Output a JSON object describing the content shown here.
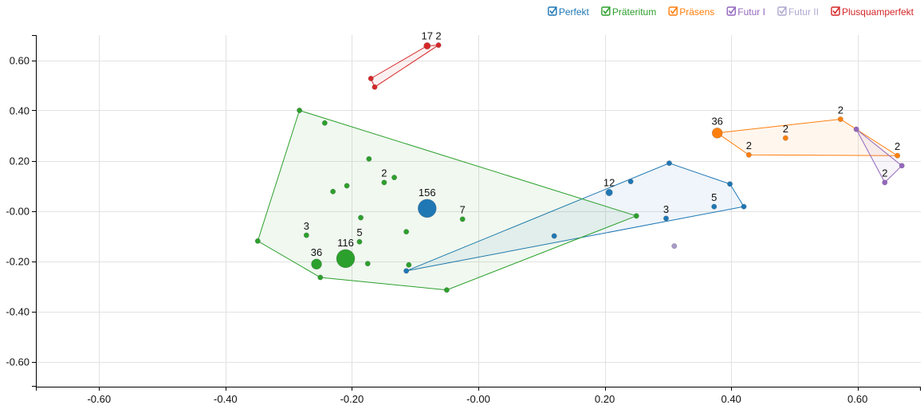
{
  "chart_data": {
    "type": "scatter",
    "title": "",
    "xlabel": "",
    "ylabel": "",
    "xlim": [
      -0.7,
      0.7
    ],
    "ylim": [
      -0.7,
      0.7
    ],
    "x_ticks": [
      "-0.60",
      "-0.40",
      "-0.20",
      "-0.00",
      "0.20",
      "0.40",
      "0.60"
    ],
    "y_ticks": [
      "0.60",
      "0.40",
      "0.20",
      "-0.00",
      "-0.20",
      "-0.40",
      "-0.60"
    ],
    "grid": true,
    "legend_position": "top-right",
    "series": [
      {
        "name": "Perfekt",
        "color": "#1f77b4",
        "enabled": true,
        "hull": [
          [
            -0.114,
            -0.239
          ],
          [
            0.302,
            0.19
          ],
          [
            0.398,
            0.107
          ],
          [
            0.42,
            0.017
          ]
        ],
        "points": [
          {
            "x": -0.081,
            "y": 0.01,
            "count": 156,
            "label": "156"
          },
          {
            "x": 0.207,
            "y": 0.073,
            "count": 12,
            "label": "12"
          },
          {
            "x": 0.297,
            "y": -0.03,
            "count": 3,
            "label": "3"
          },
          {
            "x": 0.373,
            "y": 0.017,
            "count": 5,
            "label": "5"
          },
          {
            "x": 0.241,
            "y": 0.117,
            "count": 1,
            "label": ""
          },
          {
            "x": 0.302,
            "y": 0.19,
            "count": 1,
            "label": ""
          },
          {
            "x": 0.398,
            "y": 0.107,
            "count": 1,
            "label": ""
          },
          {
            "x": 0.42,
            "y": 0.017,
            "count": 1,
            "label": ""
          },
          {
            "x": 0.12,
            "y": -0.1,
            "count": 1,
            "label": ""
          },
          {
            "x": -0.114,
            "y": -0.239,
            "count": 1,
            "label": ""
          }
        ]
      },
      {
        "name": "Präteritum",
        "color": "#2ca02c",
        "enabled": true,
        "hull": [
          [
            -0.283,
            0.4
          ],
          [
            0.25,
            -0.02
          ],
          [
            -0.05,
            -0.315
          ],
          [
            -0.25,
            -0.265
          ],
          [
            -0.349,
            -0.12
          ]
        ],
        "points": [
          {
            "x": -0.21,
            "y": -0.19,
            "count": 116,
            "label": "116"
          },
          {
            "x": -0.256,
            "y": -0.212,
            "count": 36,
            "label": "36"
          },
          {
            "x": -0.025,
            "y": -0.033,
            "count": 7,
            "label": "7"
          },
          {
            "x": -0.188,
            "y": -0.123,
            "count": 5,
            "label": "5"
          },
          {
            "x": -0.272,
            "y": -0.097,
            "count": 3,
            "label": "3"
          },
          {
            "x": -0.149,
            "y": 0.113,
            "count": 2,
            "label": "2"
          },
          {
            "x": -0.283,
            "y": 0.4,
            "count": 1,
            "label": ""
          },
          {
            "x": -0.243,
            "y": 0.35,
            "count": 1,
            "label": ""
          },
          {
            "x": -0.173,
            "y": 0.207,
            "count": 1,
            "label": ""
          },
          {
            "x": -0.133,
            "y": 0.133,
            "count": 1,
            "label": ""
          },
          {
            "x": -0.208,
            "y": 0.1,
            "count": 1,
            "label": ""
          },
          {
            "x": -0.23,
            "y": 0.077,
            "count": 1,
            "label": ""
          },
          {
            "x": -0.186,
            "y": -0.027,
            "count": 1,
            "label": ""
          },
          {
            "x": -0.114,
            "y": -0.083,
            "count": 1,
            "label": ""
          },
          {
            "x": -0.175,
            "y": -0.21,
            "count": 1,
            "label": ""
          },
          {
            "x": -0.11,
            "y": -0.215,
            "count": 1,
            "label": ""
          },
          {
            "x": 0.25,
            "y": -0.02,
            "count": 1,
            "label": ""
          },
          {
            "x": -0.05,
            "y": -0.315,
            "count": 1,
            "label": ""
          },
          {
            "x": -0.25,
            "y": -0.265,
            "count": 1,
            "label": ""
          },
          {
            "x": -0.349,
            "y": -0.12,
            "count": 1,
            "label": ""
          }
        ]
      },
      {
        "name": "Präsens",
        "color": "#ff7f0e",
        "enabled": true,
        "hull": [
          [
            0.378,
            0.31
          ],
          [
            0.573,
            0.365
          ],
          [
            0.663,
            0.22
          ],
          [
            0.428,
            0.223
          ]
        ],
        "points": [
          {
            "x": 0.378,
            "y": 0.31,
            "count": 36,
            "label": "36"
          },
          {
            "x": 0.486,
            "y": 0.29,
            "count": 2,
            "label": "2"
          },
          {
            "x": 0.428,
            "y": 0.223,
            "count": 2,
            "label": "2"
          },
          {
            "x": 0.573,
            "y": 0.365,
            "count": 2,
            "label": "2"
          },
          {
            "x": 0.663,
            "y": 0.22,
            "count": 2,
            "label": "2"
          }
        ]
      },
      {
        "name": "Futur I",
        "color": "#9467bd",
        "enabled": true,
        "hull": [
          [
            0.598,
            0.325
          ],
          [
            0.67,
            0.18
          ],
          [
            0.643,
            0.113
          ]
        ],
        "points": [
          {
            "x": 0.643,
            "y": 0.113,
            "count": 2,
            "label": "2"
          },
          {
            "x": 0.598,
            "y": 0.325,
            "count": 1,
            "label": ""
          },
          {
            "x": 0.67,
            "y": 0.18,
            "count": 1,
            "label": ""
          }
        ]
      },
      {
        "name": "Futur II",
        "color": "#8e7cc3",
        "enabled": false,
        "hull": [],
        "points": [
          {
            "x": 0.31,
            "y": -0.14,
            "count": 1,
            "label": ""
          }
        ]
      },
      {
        "name": "Plusquamperfekt",
        "color": "#d62728",
        "enabled": true,
        "hull": [
          [
            -0.17,
            0.527
          ],
          [
            -0.081,
            0.657
          ],
          [
            -0.063,
            0.66
          ],
          [
            -0.164,
            0.493
          ]
        ],
        "points": [
          {
            "x": -0.081,
            "y": 0.657,
            "count": 17,
            "label": "17"
          },
          {
            "x": -0.063,
            "y": 0.66,
            "count": 2,
            "label": "2"
          },
          {
            "x": -0.17,
            "y": 0.527,
            "count": 1,
            "label": ""
          },
          {
            "x": -0.164,
            "y": 0.493,
            "count": 1,
            "label": ""
          }
        ]
      }
    ]
  }
}
